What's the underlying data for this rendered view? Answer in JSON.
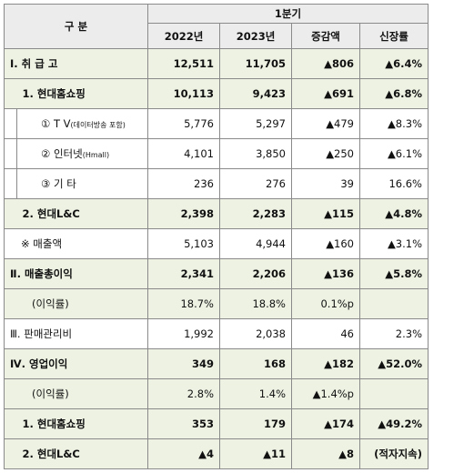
{
  "header": {
    "category": "구  분",
    "period": "1분기",
    "col_2022": "2022년",
    "col_2023": "2023년",
    "col_change": "증감액",
    "col_growth": "신장률"
  },
  "rows": [
    {
      "label": "Ⅰ. 취 급 고",
      "v2022": "12,511",
      "v2023": "11,705",
      "change": "▲806",
      "growth": "▲6.4%"
    },
    {
      "label": "1. 현대홈쇼핑",
      "v2022": "10,113",
      "v2023": "9,423",
      "change": "▲691",
      "growth": "▲6.8%"
    },
    {
      "label": "① T  V",
      "label_sub": "(데이터방송 포함)",
      "v2022": "5,776",
      "v2023": "5,297",
      "change": "▲479",
      "growth": "▲8.3%"
    },
    {
      "label": "② 인터넷",
      "label_sub": "(Hmall)",
      "v2022": "4,101",
      "v2023": "3,850",
      "change": "▲250",
      "growth": "▲6.1%"
    },
    {
      "label": "③ 기  타",
      "v2022": "236",
      "v2023": "276",
      "change": "39",
      "growth": "16.6%"
    },
    {
      "label": "2. 현대L&C",
      "v2022": "2,398",
      "v2023": "2,283",
      "change": "▲115",
      "growth": "▲4.8%"
    },
    {
      "label": "※ 매출액",
      "v2022": "5,103",
      "v2023": "4,944",
      "change": "▲160",
      "growth": "▲3.1%"
    },
    {
      "label": "Ⅱ. 매출총이익",
      "v2022": "2,341",
      "v2023": "2,206",
      "change": "▲136",
      "growth": "▲5.8%"
    },
    {
      "label": "(이익률)",
      "v2022": "18.7%",
      "v2023": "18.8%",
      "change": "0.1%p",
      "growth": ""
    },
    {
      "label": "Ⅲ. 판매관리비",
      "v2022": "1,992",
      "v2023": "2,038",
      "change": "46",
      "growth": "2.3%"
    },
    {
      "label": "Ⅳ. 영업이익",
      "v2022": "349",
      "v2023": "168",
      "change": "▲182",
      "growth": "▲52.0%"
    },
    {
      "label": "(이익률)",
      "v2022": "2.8%",
      "v2023": "1.4%",
      "change": "▲1.4%p",
      "growth": ""
    },
    {
      "label": "1. 현대홈쇼핑",
      "v2022": "353",
      "v2023": "179",
      "change": "▲174",
      "growth": "▲49.2%"
    },
    {
      "label": "2. 현대L&C",
      "v2022": "▲4",
      "v2023": "▲11",
      "change": "▲8",
      "growth": "(적자지속)"
    }
  ]
}
